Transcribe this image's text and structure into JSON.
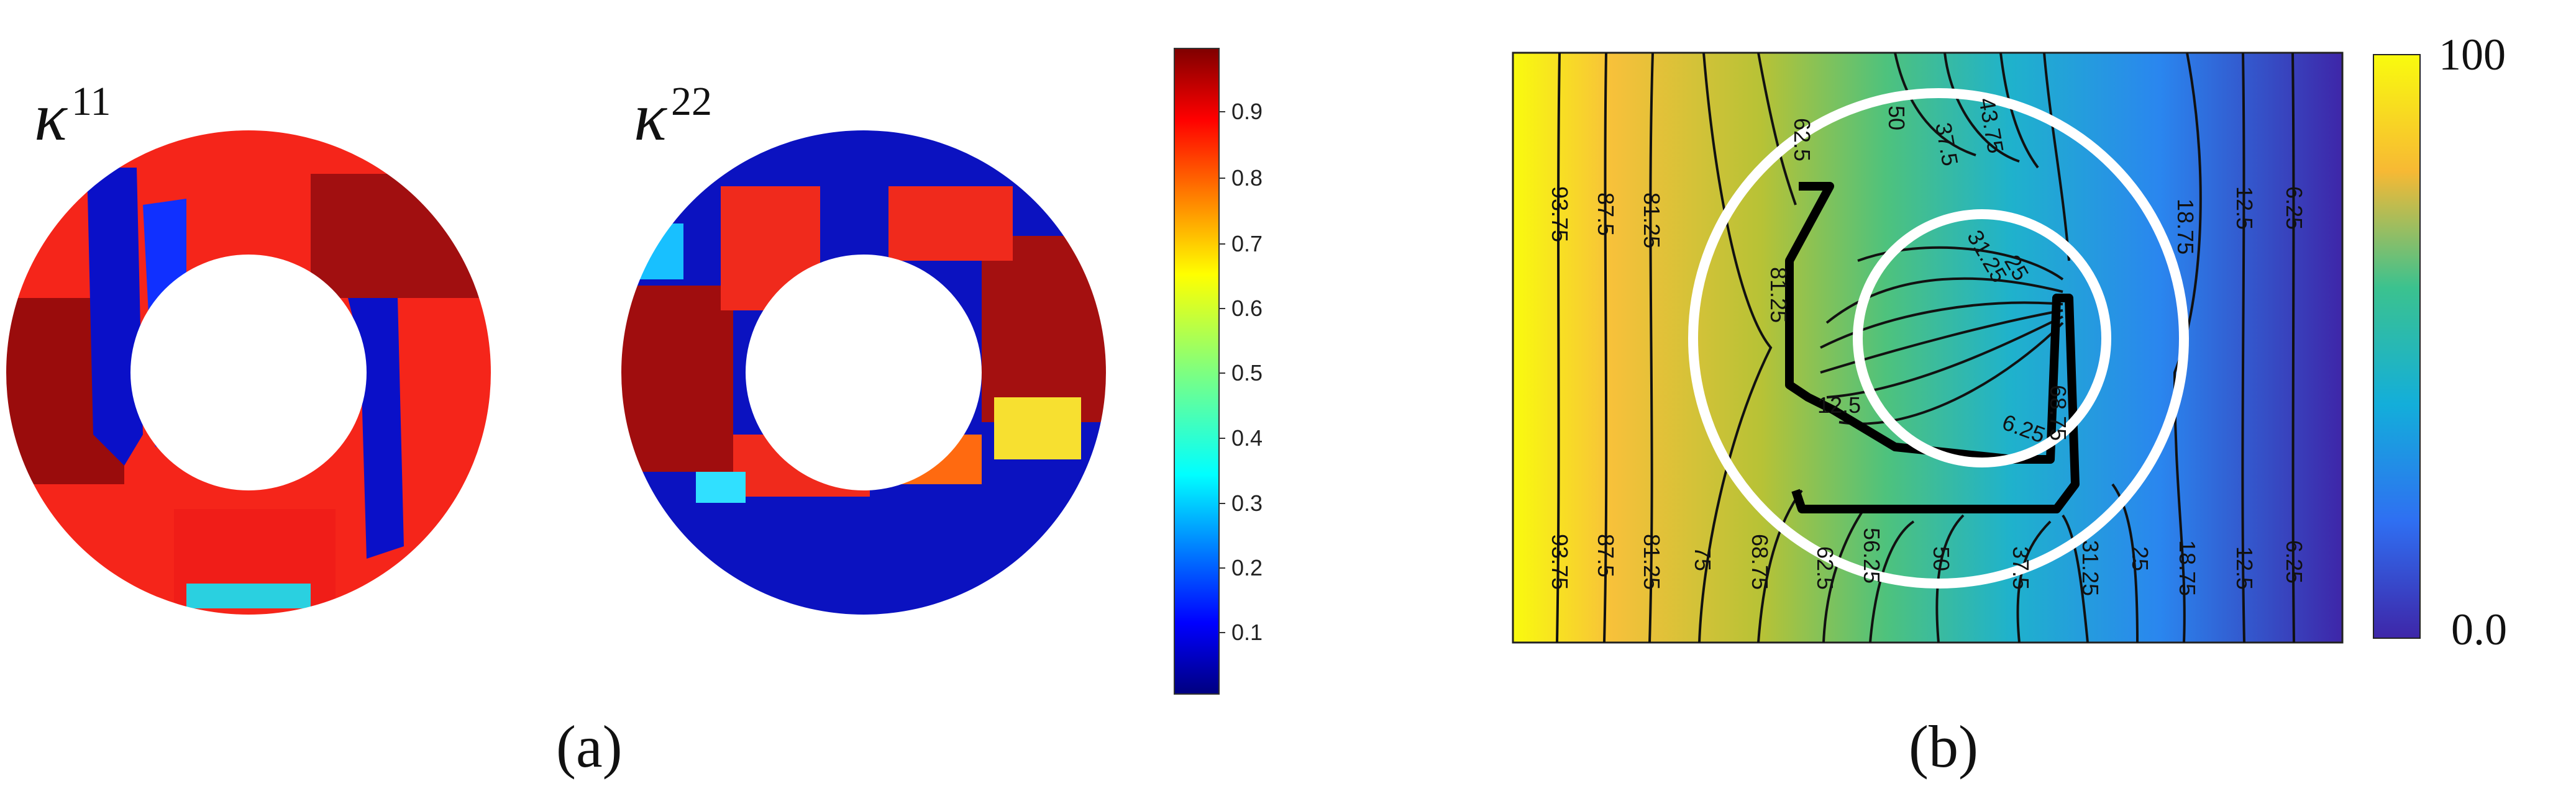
{
  "panel_a": {
    "caption": "(a)",
    "left_field": {
      "symbol": "κ",
      "superscript": "11"
    },
    "right_field": {
      "symbol": "κ",
      "superscript": "22"
    },
    "colorbar_ticks": [
      "0.9",
      "0.8",
      "0.7",
      "0.6",
      "0.5",
      "0.4",
      "0.3",
      "0.2",
      "0.1"
    ],
    "colormap": "jet"
  },
  "panel_b": {
    "caption": "(b)",
    "colorbar_max": "100",
    "colorbar_min": "0.0",
    "colormap": "parula",
    "contour_labels_left_top": [
      "93.75",
      "87.5",
      "81.25"
    ],
    "contour_labels_right_top": [
      "18.75",
      "12.5",
      "6.25"
    ],
    "contour_labels_bottom": [
      "93.75",
      "87.5",
      "81.25",
      "75",
      "68.75",
      "62.5",
      "56.25",
      "50",
      "37.5",
      "31.25",
      "25",
      "18.75",
      "12.5",
      "6.25"
    ],
    "contour_labels_inner": [
      "62.5",
      "50",
      "37.5",
      "43.75",
      "31.25",
      "25",
      "12.5",
      "6.25",
      "81.25",
      "68.75"
    ]
  }
}
